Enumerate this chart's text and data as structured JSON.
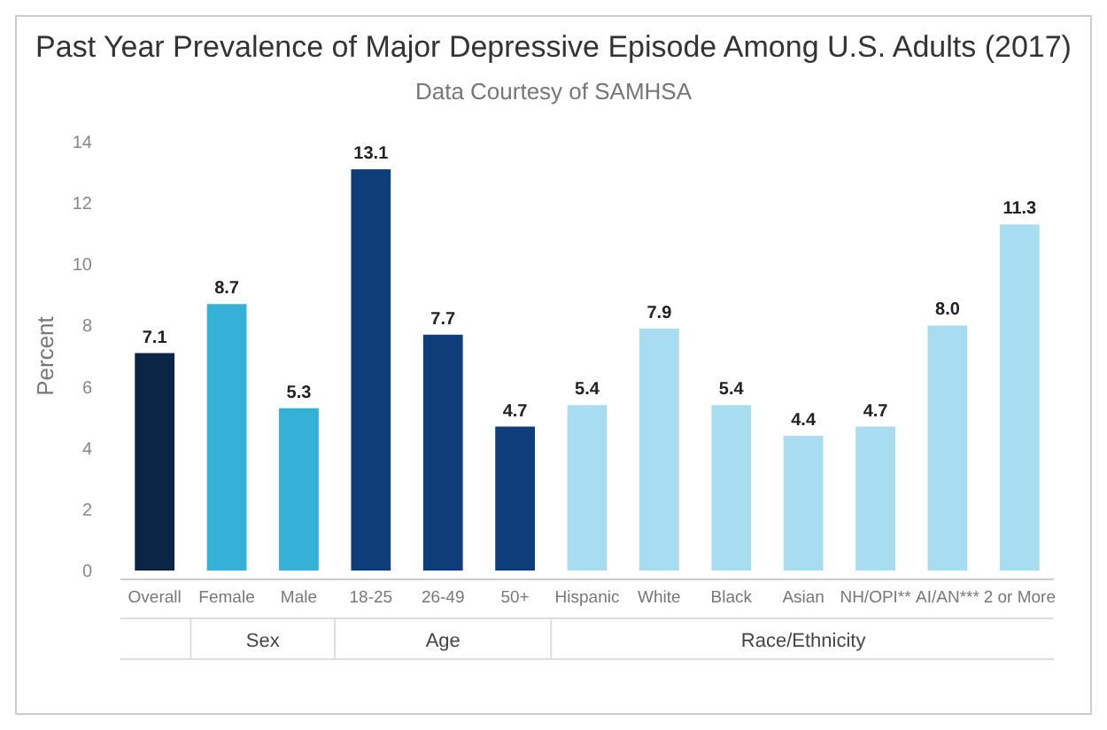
{
  "chart_data": {
    "type": "bar",
    "title": "Past Year Prevalence of Major Depressive Episode Among U.S. Adults (2017)",
    "subtitle": "Data Courtesy of SAMHSA",
    "ylabel": "Percent",
    "categories": [
      "Overall",
      "Female",
      "Male",
      "18-25",
      "26-49",
      "50+",
      "Hispanic",
      "White",
      "Black",
      "Asian",
      "NH/OPI**",
      "AI/AN***",
      "2 or More"
    ],
    "values": [
      7.1,
      8.7,
      5.3,
      13.1,
      7.7,
      4.7,
      5.4,
      7.9,
      5.4,
      4.4,
      4.7,
      8.0,
      11.3
    ],
    "colors": [
      "#0b2546",
      "#35b0d6",
      "#35b0d6",
      "#0f3d7a",
      "#0f3d7a",
      "#0f3d7a",
      "#a8dcf0",
      "#a8dcf0",
      "#a8dcf0",
      "#a8dcf0",
      "#a8dcf0",
      "#a8dcf0",
      "#a8dcf0"
    ],
    "value_labels": [
      "7.1",
      "8.7",
      "5.3",
      "13.1",
      "7.7",
      "4.7",
      "5.4",
      "7.9",
      "5.4",
      "4.4",
      "4.7",
      "8.0",
      "11.3"
    ],
    "annotations": [
      "Sex",
      "Age",
      "Race/Ethnicity"
    ],
    "ylim": [
      0,
      14
    ],
    "yticks": [
      0,
      2,
      4,
      6,
      8,
      10,
      12,
      14
    ],
    "grid": false
  }
}
